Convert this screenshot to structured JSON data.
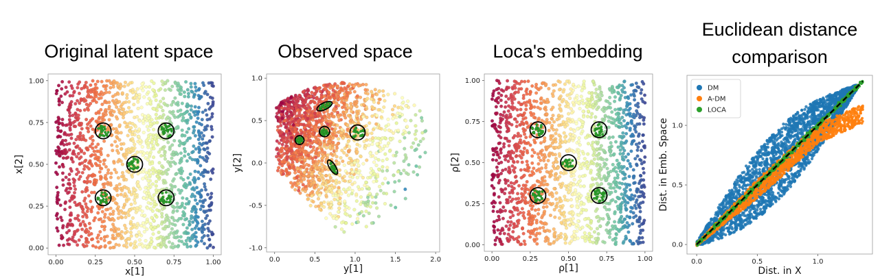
{
  "panels": [
    {
      "title": "Original latent space"
    },
    {
      "title": "Observed space"
    },
    {
      "title": "Loca's embedding"
    },
    {
      "title_lines": [
        "Euclidean distance",
        "comparison"
      ]
    }
  ],
  "chart_data": [
    {
      "type": "scatter",
      "title": "Original latent space",
      "xlabel": "x[1]",
      "ylabel": "x[2]",
      "xlim": [
        -0.05,
        1.05
      ],
      "ylim": [
        -0.04,
        1.04
      ],
      "xticks": [
        "0.00",
        "0.25",
        "0.50",
        "0.75",
        "1.00"
      ],
      "yticks": [
        "0.00",
        "0.25",
        "0.50",
        "0.75",
        "1.00"
      ],
      "color_by": "x[1]",
      "colormap": "Spectral (red at low x[1], blue at high x[1])",
      "n_points_approx": 2000,
      "highlight_clusters": [
        {
          "x": 0.3,
          "y": 0.7,
          "color": "#2ca02c"
        },
        {
          "x": 0.7,
          "y": 0.7,
          "color": "#2ca02c"
        },
        {
          "x": 0.5,
          "y": 0.5,
          "color": "#2ca02c"
        },
        {
          "x": 0.3,
          "y": 0.3,
          "color": "#2ca02c"
        },
        {
          "x": 0.7,
          "y": 0.3,
          "color": "#2ca02c"
        }
      ]
    },
    {
      "type": "scatter",
      "title": "Observed space",
      "xlabel": "y[1]",
      "ylabel": "y[2]",
      "xlim": [
        -0.1,
        2.05
      ],
      "ylim": [
        -1.05,
        1.05
      ],
      "xticks": [
        "0.0",
        "0.5",
        "1.0",
        "1.5",
        "2.0"
      ],
      "yticks": [
        "-1.0",
        "-0.5",
        "0.0",
        "0.5",
        "1.0"
      ],
      "color_by": "x[1]",
      "highlight_clusters": [
        {
          "x": 0.31,
          "y": 0.27,
          "color": "#2ca02c"
        },
        {
          "x": 0.62,
          "y": 0.67,
          "color": "#2ca02c"
        },
        {
          "x": 0.62,
          "y": 0.37,
          "color": "#2ca02c"
        },
        {
          "x": 1.03,
          "y": 0.36,
          "color": "#2ca02c"
        },
        {
          "x": 0.72,
          "y": -0.05,
          "color": "#2ca02c"
        }
      ]
    },
    {
      "type": "scatter",
      "title": "Loca's embedding",
      "xlabel": "ρ[1]",
      "ylabel": "ρ[2]",
      "xlim": [
        -0.05,
        1.05
      ],
      "ylim": [
        -0.04,
        1.04
      ],
      "xticks": [
        "0.00",
        "0.25",
        "0.50",
        "0.75",
        "1.00"
      ],
      "yticks": [
        "0.00",
        "0.25",
        "0.50",
        "0.75",
        "1.00"
      ],
      "color_by": "ρ[1]",
      "highlight_clusters": [
        {
          "x": 0.3,
          "y": 0.7,
          "color": "#2ca02c"
        },
        {
          "x": 0.7,
          "y": 0.7,
          "color": "#2ca02c"
        },
        {
          "x": 0.5,
          "y": 0.5,
          "color": "#2ca02c"
        },
        {
          "x": 0.3,
          "y": 0.3,
          "color": "#2ca02c"
        },
        {
          "x": 0.7,
          "y": 0.3,
          "color": "#2ca02c"
        }
      ]
    },
    {
      "type": "scatter",
      "title": "Euclidean distance comparison",
      "xlabel": "Dist. in X",
      "ylabel": "Dist. in Emb. Space",
      "xlim": [
        -0.08,
        1.45
      ],
      "ylim": [
        -0.08,
        1.42
      ],
      "xticks": [
        "0.0",
        "0.5",
        "1.0"
      ],
      "yticks": [
        "0.0",
        "0.5",
        "1.0"
      ],
      "legend": {
        "placement": "top-left",
        "entries": [
          "DM",
          "A-DM",
          "LOCA"
        ]
      },
      "series": [
        {
          "name": "DM",
          "color": "#1f77b4",
          "relation": "y ≈ x with wide spread (band approx. ±0.3)"
        },
        {
          "name": "A-DM",
          "color": "#ff7f0e",
          "relation": "y ≈ x with narrow spread, falls below identity and flattens near 1.1 for x > 1.0"
        },
        {
          "name": "LOCA",
          "color": "#2ca02c",
          "relation": "y = x (on identity line)"
        }
      ],
      "reference_line": {
        "style": "dashed",
        "color": "#000000",
        "from": [
          0,
          0
        ],
        "to": [
          1.37,
          1.37
        ]
      }
    }
  ]
}
